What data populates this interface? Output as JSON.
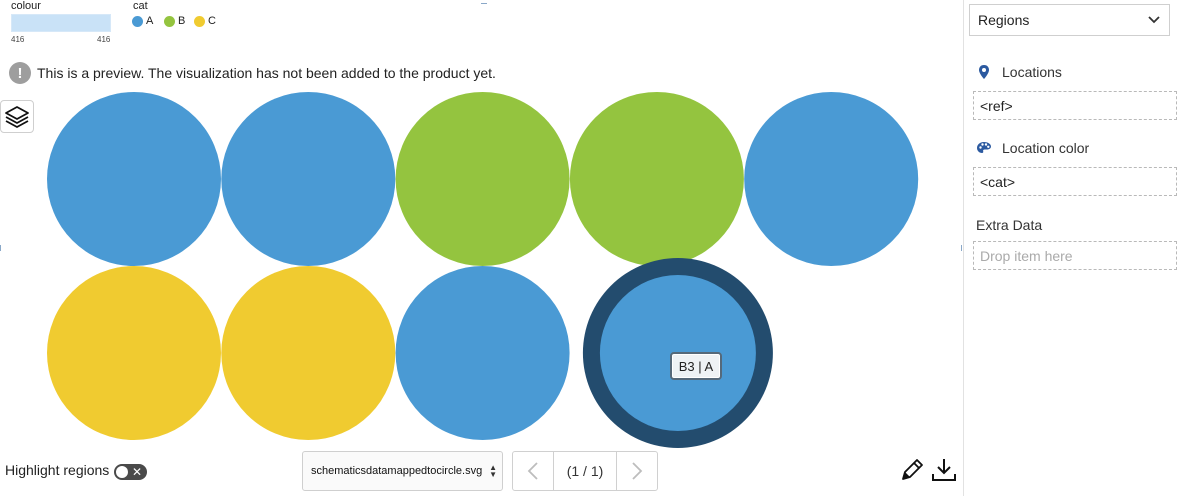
{
  "colour_legend": {
    "title": "colour",
    "min_label": "416",
    "max_label": "416",
    "color": "#c9e2f7"
  },
  "category_legend": {
    "title": "cat",
    "items": [
      {
        "label": "A",
        "color": "#4a9ad4"
      },
      {
        "label": "B",
        "color": "#94c43f"
      },
      {
        "label": "C",
        "color": "#f0cb30"
      }
    ]
  },
  "notice": {
    "text": "This is a preview. The visualization has not been added to the product yet."
  },
  "circles": [
    {
      "row": 1,
      "col": 1,
      "cat": "A"
    },
    {
      "row": 1,
      "col": 2,
      "cat": "A"
    },
    {
      "row": 1,
      "col": 3,
      "cat": "B"
    },
    {
      "row": 1,
      "col": 4,
      "cat": "B"
    },
    {
      "row": 1,
      "col": 5,
      "cat": "A"
    },
    {
      "row": 2,
      "col": 1,
      "cat": "C"
    },
    {
      "row": 2,
      "col": 2,
      "cat": "C"
    },
    {
      "row": 2,
      "col": 3,
      "cat": "A"
    },
    {
      "row": 2,
      "col": 4,
      "cat": "A",
      "selected": true
    }
  ],
  "highlight_color": "#234c6e",
  "tooltip": {
    "text": "B3 | A"
  },
  "toolbar": {
    "highlight_label": "Highlight regions",
    "file_name": "schematicsdatamappedtocircle.svg",
    "page_indicator": "(1 / 1)"
  },
  "panel": {
    "dropdown_value": "Regions",
    "locations_label": "Locations",
    "locations_value": "<ref>",
    "color_label": "Location color",
    "color_value": "<cat>",
    "extra_label": "Extra Data",
    "extra_placeholder": "Drop item here",
    "accent": "#2c5aa0"
  }
}
